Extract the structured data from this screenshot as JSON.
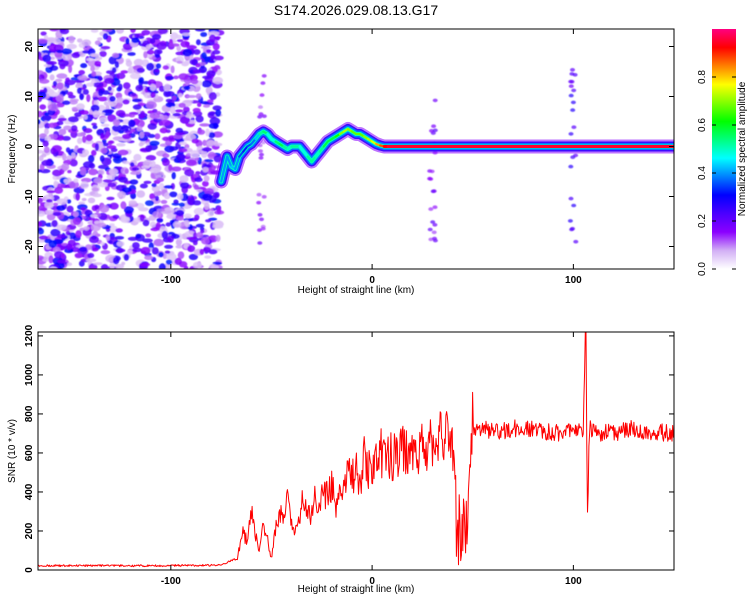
{
  "title": "S174.2026.029.08.13.G17",
  "chart_data": [
    {
      "type": "heatmap",
      "xlabel": "Height of straight line (km)",
      "ylabel": "Frequency (Hz)",
      "xlim": [
        -166,
        150
      ],
      "ylim": [
        -24.5,
        23.5
      ],
      "xticks": [
        -100,
        0,
        100
      ],
      "yticks": [
        -20,
        -10,
        0,
        10,
        20
      ],
      "colorbar": {
        "label": "Normalized spectral amplitude",
        "range": [
          0,
          1
        ],
        "ticks": [
          0.0,
          0.2,
          0.4,
          0.6,
          0.8
        ],
        "colors": [
          "#ffffff",
          "#d2aff5",
          "#8b00ff",
          "#4b00ff",
          "#0000ff",
          "#0080ff",
          "#00ffff",
          "#00ff80",
          "#00ff00",
          "#80ff00",
          "#ffff00",
          "#ff8000",
          "#ff0000",
          "#ff0080"
        ]
      },
      "ridge_track": {
        "x": [
          -75,
          -72,
          -70,
          -68,
          -66,
          -64,
          -62,
          -60,
          -58,
          -56,
          -54,
          -52,
          -50,
          -48,
          -46,
          -44,
          -42,
          -40,
          -38,
          -36,
          -34,
          -32,
          -30,
          -28,
          -26,
          -24,
          -22,
          -20,
          -18,
          -16,
          -14,
          -12,
          -10,
          -8,
          -6,
          -4,
          -2,
          0,
          2,
          4,
          6,
          8,
          10,
          15,
          20,
          25,
          30,
          35,
          40,
          45,
          50,
          60,
          70,
          80,
          90,
          100,
          110,
          120,
          130,
          140,
          150
        ],
        "y": [
          -7,
          -2,
          -4,
          -4.5,
          -2,
          -1,
          0,
          0.5,
          1.5,
          2.5,
          3,
          2.5,
          1.5,
          1,
          0.5,
          0,
          -0.5,
          0,
          0,
          0,
          -1,
          -2,
          -3,
          -2,
          -1,
          0,
          1,
          1.5,
          2,
          2.5,
          3,
          3.5,
          3,
          2.5,
          2.5,
          2,
          1.5,
          1,
          0.5,
          0.2,
          0,
          0,
          0,
          0,
          0,
          0,
          0,
          0,
          0,
          0,
          0,
          0,
          0,
          0,
          0,
          0,
          0,
          0,
          0,
          0,
          0
        ],
        "amplitude": [
          0.45,
          0.35,
          0.45,
          0.4,
          0.4,
          0.3,
          0.35,
          0.35,
          0.4,
          0.45,
          0.6,
          0.5,
          0.45,
          0.5,
          0.6,
          0.55,
          0.5,
          0.5,
          0.55,
          0.5,
          0.45,
          0.5,
          0.55,
          0.5,
          0.5,
          0.55,
          0.6,
          0.55,
          0.6,
          0.65,
          0.75,
          0.7,
          0.7,
          0.65,
          0.7,
          0.65,
          0.75,
          0.7,
          0.8,
          0.85,
          0.9,
          0.95,
          0.95,
          0.95,
          0.95,
          0.95,
          0.95,
          0.95,
          0.95,
          0.95,
          0.95,
          0.95,
          0.95,
          0.95,
          0.95,
          0.95,
          0.95,
          0.95,
          0.95,
          0.95,
          0.95
        ]
      },
      "noise_region": {
        "x": [
          -166,
          -76
        ],
        "y": [
          -24.5,
          23.5
        ]
      }
    },
    {
      "type": "line",
      "xlabel": "Height of straight line (km)",
      "ylabel": "SNR (10 * v/v)",
      "xlim": [
        -166,
        150
      ],
      "ylim": [
        0,
        1220
      ],
      "xticks": [
        -100,
        0,
        100
      ],
      "yticks": [
        0,
        200,
        400,
        600,
        800,
        1000,
        1200
      ],
      "color": "#ff0000",
      "series": [
        {
          "x": [
            -166,
            -150,
            -130,
            -110,
            -90,
            -75,
            -67,
            -64,
            -62,
            -60,
            -58,
            -56,
            -54,
            -52,
            -50,
            -48,
            -46,
            -44,
            -42,
            -40,
            -38,
            -36,
            -34,
            -32,
            -30,
            -28,
            -26,
            -24,
            -22,
            -20,
            -18,
            -16,
            -14,
            -12,
            -10,
            -8,
            -6,
            -4,
            -2,
            0,
            5,
            10,
            15,
            20,
            25,
            30,
            35,
            40,
            41,
            44,
            46,
            48,
            50,
            52,
            55,
            60,
            70,
            80,
            90,
            100,
            103,
            105,
            106,
            107,
            108,
            110,
            120,
            130,
            140,
            150
          ],
          "y": [
            22,
            22,
            22,
            22,
            24,
            25,
            60,
            200,
            140,
            300,
            180,
            100,
            220,
            150,
            60,
            200,
            280,
            260,
            350,
            240,
            220,
            300,
            380,
            280,
            300,
            380,
            350,
            400,
            380,
            420,
            330,
            450,
            400,
            500,
            470,
            520,
            480,
            560,
            520,
            540,
            600,
            580,
            620,
            620,
            640,
            650,
            670,
            690,
            150,
            150,
            140,
            150,
            720,
            700,
            720,
            700,
            720,
            720,
            700,
            700,
            710,
            720,
            1220,
            280,
            720,
            700,
            700,
            720,
            700,
            700
          ]
        }
      ]
    }
  ]
}
